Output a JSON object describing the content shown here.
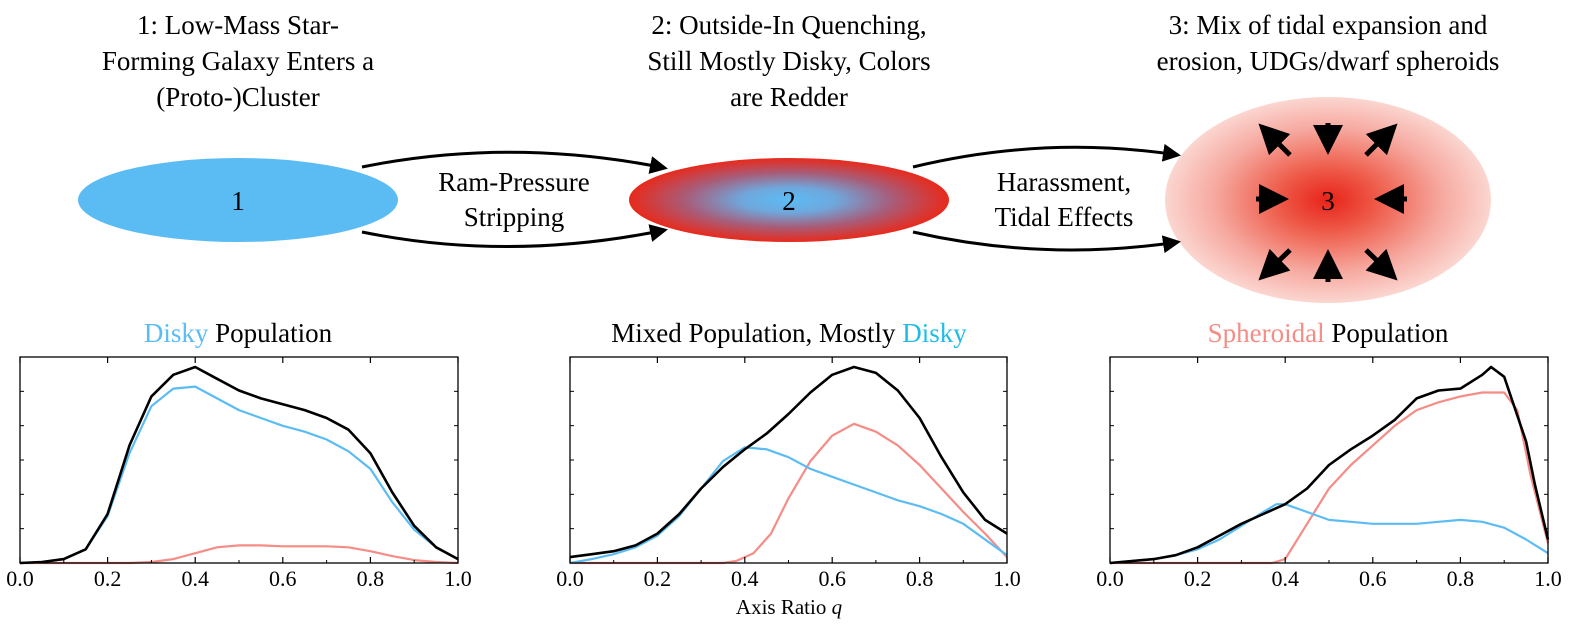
{
  "colors": {
    "disky": "#5bbcf4",
    "spheroidal": "#f58c86",
    "total": "#000000",
    "red": "#e8231a",
    "title_disky_mid": "#1fbde6"
  },
  "stages": [
    {
      "number": "1",
      "title_lines": [
        "1: Low-Mass Star-",
        "Forming Galaxy Enters a",
        "(Proto-)Cluster"
      ]
    },
    {
      "number": "2",
      "title_lines": [
        "2: Outside-In Quenching,",
        "Still Mostly Disky, Colors",
        "are Redder"
      ]
    },
    {
      "number": "3",
      "title_lines": [
        "3: Mix of tidal expansion and",
        "erosion, UDGs/dwarf spheroids"
      ]
    }
  ],
  "transitions": [
    {
      "lines": [
        "Ram-Pressure",
        "Stripping"
      ]
    },
    {
      "lines": [
        "Harassment,",
        "Tidal Effects"
      ]
    }
  ],
  "panel_titles": [
    {
      "colored": "Disky",
      "plain": " Population",
      "colored_first": true
    },
    {
      "plain": "Mixed Population, Mostly ",
      "colored": "Disky",
      "colored_first": false
    },
    {
      "colored": "Spheroidal",
      "plain": " Population",
      "colored_first": true
    }
  ],
  "xlabel": {
    "text": "Axis Ratio ",
    "var": "q"
  },
  "chart_data": [
    {
      "type": "line",
      "title": "Disky Population",
      "xlim": [
        0.0,
        1.0
      ],
      "xticks": [
        "0.0",
        "0.2",
        "0.4",
        "0.6",
        "0.8",
        "1.0"
      ],
      "series": [
        {
          "key": "total",
          "x": [
            0,
            0.05,
            0.1,
            0.15,
            0.2,
            0.25,
            0.3,
            0.35,
            0.4,
            0.45,
            0.5,
            0.55,
            0.6,
            0.65,
            0.7,
            0.75,
            0.8,
            0.85,
            0.9,
            0.95,
            1.0
          ],
          "y": [
            0,
            0.005,
            0.02,
            0.07,
            0.25,
            0.6,
            0.85,
            0.96,
            1.0,
            0.94,
            0.88,
            0.84,
            0.81,
            0.78,
            0.74,
            0.68,
            0.56,
            0.36,
            0.19,
            0.08,
            0.02
          ]
        },
        {
          "key": "disky",
          "x": [
            0,
            0.05,
            0.1,
            0.15,
            0.2,
            0.25,
            0.3,
            0.35,
            0.4,
            0.45,
            0.5,
            0.55,
            0.6,
            0.65,
            0.7,
            0.75,
            0.8,
            0.85,
            0.9,
            0.95,
            1.0
          ],
          "y": [
            0,
            0.005,
            0.02,
            0.07,
            0.24,
            0.56,
            0.8,
            0.89,
            0.9,
            0.84,
            0.78,
            0.74,
            0.7,
            0.67,
            0.63,
            0.57,
            0.48,
            0.31,
            0.17,
            0.08,
            0.02
          ]
        },
        {
          "key": "spheroidal",
          "x": [
            0,
            0.25,
            0.3,
            0.35,
            0.4,
            0.45,
            0.5,
            0.55,
            0.6,
            0.65,
            0.7,
            0.75,
            0.8,
            0.85,
            0.9,
            0.95,
            1.0
          ],
          "y": [
            0,
            0,
            0.005,
            0.02,
            0.05,
            0.08,
            0.09,
            0.09,
            0.085,
            0.085,
            0.085,
            0.08,
            0.06,
            0.035,
            0.015,
            0.005,
            0
          ]
        }
      ]
    },
    {
      "type": "line",
      "title": "Mixed Population, Mostly Disky",
      "xlim": [
        0.0,
        1.0
      ],
      "xticks": [
        "0.0",
        "0.2",
        "0.4",
        "0.6",
        "0.8",
        "1.0"
      ],
      "series": [
        {
          "key": "total",
          "x": [
            0,
            0.05,
            0.1,
            0.15,
            0.2,
            0.25,
            0.3,
            0.35,
            0.4,
            0.45,
            0.5,
            0.55,
            0.6,
            0.65,
            0.7,
            0.75,
            0.8,
            0.85,
            0.9,
            0.95,
            1.0
          ],
          "y": [
            0.03,
            0.045,
            0.06,
            0.09,
            0.15,
            0.25,
            0.38,
            0.49,
            0.58,
            0.66,
            0.76,
            0.87,
            0.96,
            1.0,
            0.97,
            0.88,
            0.74,
            0.54,
            0.36,
            0.22,
            0.15
          ]
        },
        {
          "key": "disky",
          "x": [
            0,
            0.05,
            0.1,
            0.15,
            0.2,
            0.25,
            0.3,
            0.35,
            0.4,
            0.45,
            0.5,
            0.55,
            0.6,
            0.65,
            0.7,
            0.75,
            0.8,
            0.85,
            0.9,
            0.95,
            1.0
          ],
          "y": [
            0,
            0.02,
            0.045,
            0.08,
            0.14,
            0.24,
            0.38,
            0.52,
            0.59,
            0.58,
            0.54,
            0.48,
            0.44,
            0.4,
            0.36,
            0.32,
            0.29,
            0.25,
            0.2,
            0.12,
            0.04
          ]
        },
        {
          "key": "spheroidal",
          "x": [
            0,
            0.35,
            0.38,
            0.42,
            0.46,
            0.5,
            0.55,
            0.6,
            0.65,
            0.7,
            0.75,
            0.8,
            0.85,
            0.9,
            0.95,
            1.0
          ],
          "y": [
            0,
            0,
            0.01,
            0.05,
            0.15,
            0.33,
            0.52,
            0.65,
            0.71,
            0.67,
            0.6,
            0.5,
            0.38,
            0.26,
            0.15,
            0.03
          ]
        }
      ]
    },
    {
      "type": "line",
      "title": "Spheroidal Population",
      "xlim": [
        0.0,
        1.0
      ],
      "xticks": [
        "0.0",
        "0.2",
        "0.4",
        "0.6",
        "0.8",
        "1.0"
      ],
      "series": [
        {
          "key": "total",
          "x": [
            0,
            0.05,
            0.1,
            0.15,
            0.2,
            0.25,
            0.3,
            0.35,
            0.4,
            0.45,
            0.5,
            0.55,
            0.6,
            0.65,
            0.7,
            0.75,
            0.8,
            0.85,
            0.87,
            0.9,
            0.95,
            0.97,
            1.0
          ],
          "y": [
            0,
            0.01,
            0.02,
            0.04,
            0.08,
            0.14,
            0.2,
            0.25,
            0.3,
            0.38,
            0.5,
            0.58,
            0.65,
            0.73,
            0.84,
            0.88,
            0.89,
            0.96,
            1.0,
            0.95,
            0.62,
            0.4,
            0.12
          ]
        },
        {
          "key": "disky",
          "x": [
            0,
            0.05,
            0.1,
            0.15,
            0.2,
            0.25,
            0.3,
            0.35,
            0.38,
            0.4,
            0.45,
            0.5,
            0.55,
            0.6,
            0.65,
            0.7,
            0.75,
            0.8,
            0.85,
            0.9,
            0.95,
            1.0
          ],
          "y": [
            0,
            0.01,
            0.02,
            0.04,
            0.07,
            0.12,
            0.19,
            0.26,
            0.3,
            0.3,
            0.26,
            0.22,
            0.21,
            0.2,
            0.2,
            0.2,
            0.21,
            0.22,
            0.21,
            0.18,
            0.12,
            0.05
          ]
        },
        {
          "key": "spheroidal",
          "x": [
            0,
            0.37,
            0.4,
            0.45,
            0.5,
            0.55,
            0.6,
            0.65,
            0.7,
            0.75,
            0.8,
            0.85,
            0.9,
            0.93,
            0.96,
            1.0
          ],
          "y": [
            0,
            0,
            0.02,
            0.2,
            0.38,
            0.5,
            0.6,
            0.7,
            0.78,
            0.82,
            0.85,
            0.87,
            0.87,
            0.78,
            0.45,
            0.1
          ]
        }
      ]
    }
  ]
}
